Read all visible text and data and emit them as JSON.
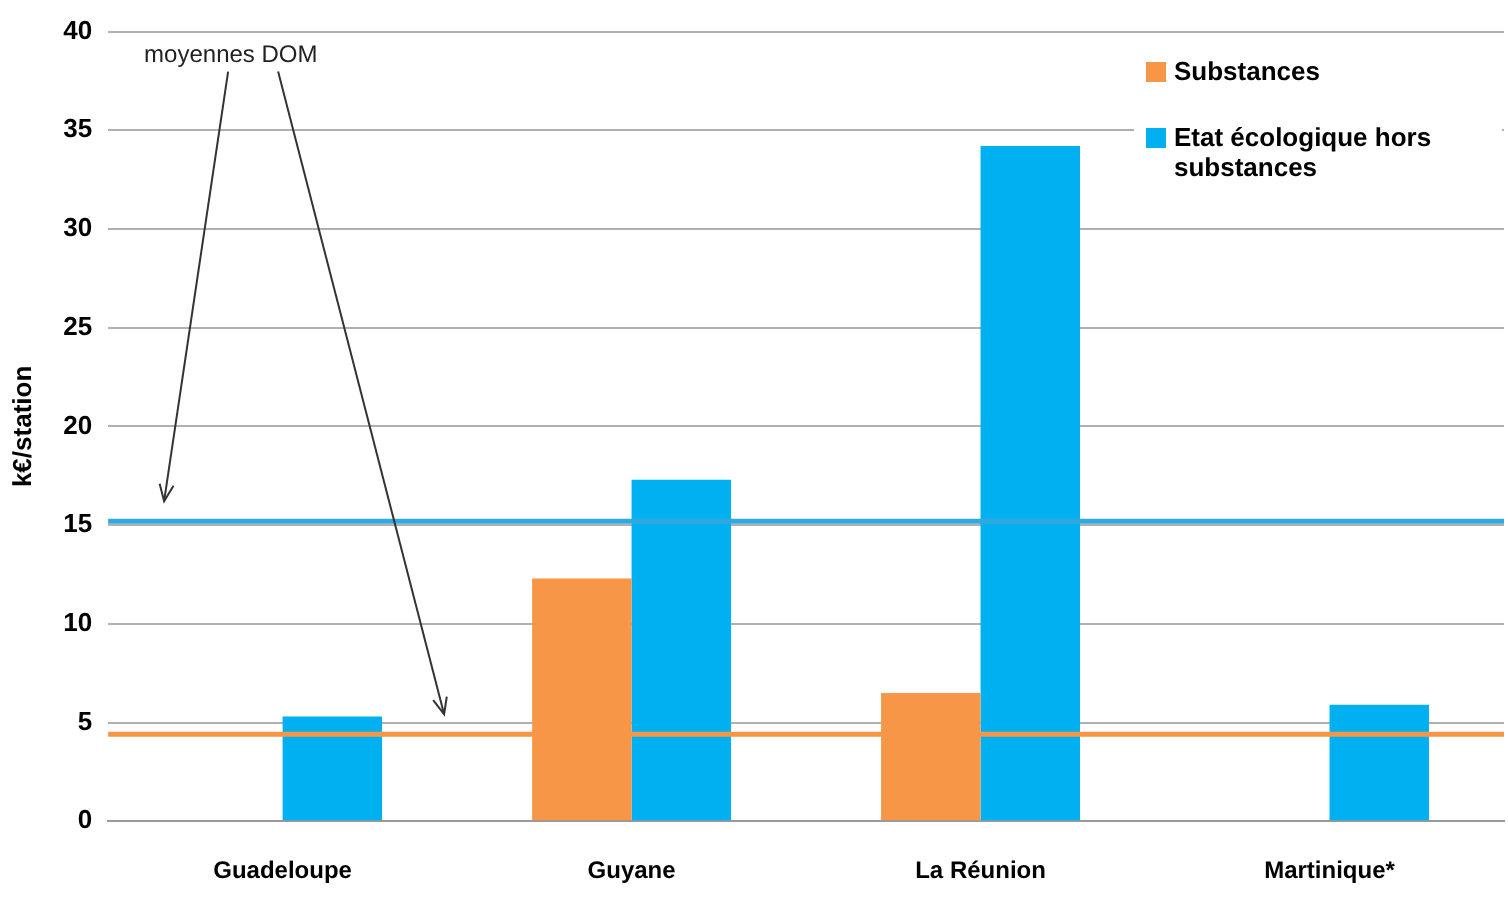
{
  "chart_data": {
    "type": "bar",
    "ylabel": "k€/station",
    "categories": [
      "Guadeloupe",
      "Guyane",
      "La Réunion",
      "Martinique*"
    ],
    "series": [
      {
        "name": "Substances",
        "color": "#f79646",
        "values": [
          null,
          12.3,
          6.5,
          null
        ]
      },
      {
        "name": "Etat écologique hors substances",
        "color": "#00b0f0",
        "values": [
          5.3,
          17.3,
          34.2,
          5.9
        ]
      }
    ],
    "ylim": [
      0,
      40
    ],
    "yticks": [
      0,
      5,
      10,
      15,
      20,
      25,
      30,
      35,
      40
    ],
    "grid": "y",
    "legend": "top right",
    "ref_lines": [
      {
        "axis": "y",
        "value": 15.2,
        "color": "#31a9e0"
      },
      {
        "axis": "y",
        "value": 4.4,
        "color": "#f79646"
      }
    ],
    "annotations": [
      "moyennes DOM"
    ]
  }
}
